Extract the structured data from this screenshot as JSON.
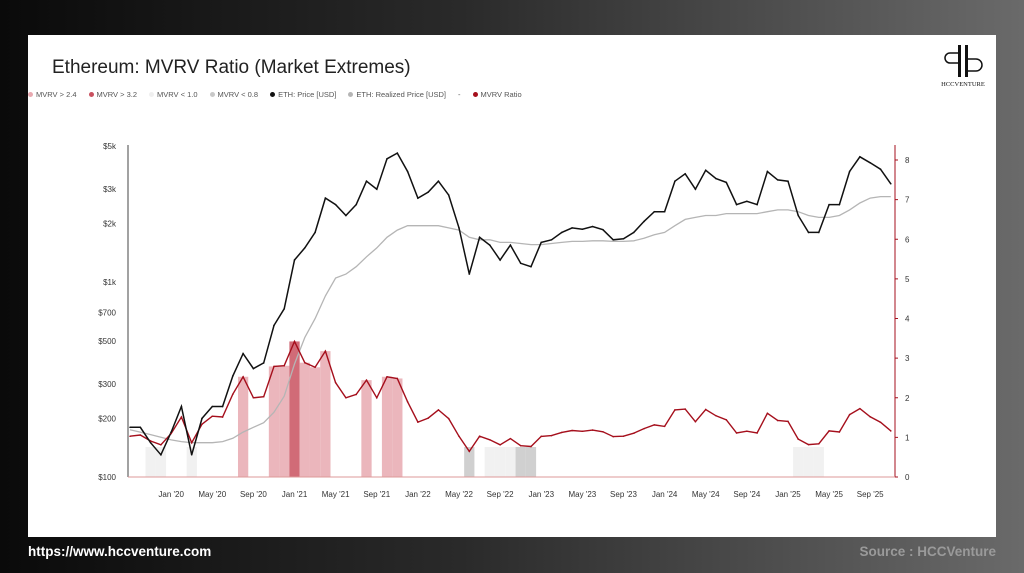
{
  "chart_data": {
    "type": "line",
    "title": "Ethereum: MVRV Ratio (Market Extremes)",
    "legend": [
      {
        "label": "MVRV > 2.4",
        "color": "#e8a9b0"
      },
      {
        "label": "MVRV > 3.2",
        "color": "#c9515f"
      },
      {
        "label": "MVRV < 1.0",
        "color": "#efefef"
      },
      {
        "label": "MVRV < 0.8",
        "color": "#c8c8c8"
      },
      {
        "label": "ETH: Price [USD]",
        "color": "#111111"
      },
      {
        "label": "ETH: Realized Price [USD]",
        "color": "#b5b5b5"
      },
      {
        "label": "-",
        "color": ""
      },
      {
        "label": "MVRV Ratio",
        "color": "#a50f1c"
      }
    ],
    "legend_position": "top-left",
    "start_month": "2019-09",
    "price": [
      180,
      180,
      150,
      130,
      170,
      230,
      130,
      200,
      230,
      230,
      330,
      430,
      360,
      385,
      600,
      730,
      1300,
      1500,
      1800,
      2700,
      2500,
      2200,
      2500,
      3300,
      3000,
      4300,
      4600,
      3700,
      2700,
      2900,
      3300,
      2800,
      1900,
      1100,
      1700,
      1550,
      1300,
      1550,
      1250,
      1200,
      1600,
      1650,
      1800,
      1900,
      1870,
      1930,
      1860,
      1650,
      1670,
      1800,
      2050,
      2300,
      2300,
      3300,
      3600,
      3000,
      3750,
      3400,
      3250,
      2500,
      2600,
      2500,
      3700,
      3350,
      3300,
      2200,
      1800,
      1800,
      2500,
      2500,
      3700,
      4400,
      4100,
      3800,
      3200
    ],
    "realized_price": [
      175,
      170,
      165,
      160,
      155,
      152,
      150,
      150,
      150,
      152,
      158,
      170,
      180,
      190,
      215,
      260,
      380,
      520,
      650,
      850,
      1050,
      1100,
      1200,
      1350,
      1500,
      1700,
      1850,
      1950,
      1950,
      1950,
      1950,
      1900,
      1850,
      1700,
      1650,
      1650,
      1600,
      1600,
      1580,
      1560,
      1560,
      1580,
      1600,
      1620,
      1620,
      1630,
      1630,
      1620,
      1620,
      1630,
      1680,
      1750,
      1800,
      1950,
      2100,
      2150,
      2200,
      2200,
      2250,
      2250,
      2250,
      2250,
      2300,
      2350,
      2350,
      2300,
      2200,
      2150,
      2150,
      2200,
      2350,
      2550,
      2700,
      2750,
      2750
    ],
    "y_left": {
      "scale": "log",
      "range": [
        100,
        5000
      ],
      "ticks": [
        100,
        200,
        300,
        500,
        700,
        1000,
        2000,
        3000,
        5000
      ],
      "tick_labels": [
        "$100",
        "$200",
        "$300",
        "$500",
        "$700",
        "$1k",
        "$2k",
        "$3k",
        "$5k"
      ]
    },
    "y_right": {
      "range": [
        0,
        8
      ],
      "tick_labels": [
        "0",
        "1",
        "2",
        "3",
        "4",
        "5",
        "6",
        "7",
        "8"
      ]
    },
    "x_tick_labels": [
      "Jan '20",
      "May '20",
      "Sep '20",
      "Jan '21",
      "May '21",
      "Sep '21",
      "Jan '22",
      "May '22",
      "Sep '22",
      "Jan '23",
      "May '23",
      "Sep '23",
      "Jan '24",
      "May '24",
      "Sep '24",
      "Jan '25",
      "May '25",
      "Sep '25"
    ],
    "grid": false
  },
  "logo_text": "HCCVENTURE",
  "footer": {
    "url": "https://www.hccventure.com",
    "source": "Source : HCCVenture"
  }
}
